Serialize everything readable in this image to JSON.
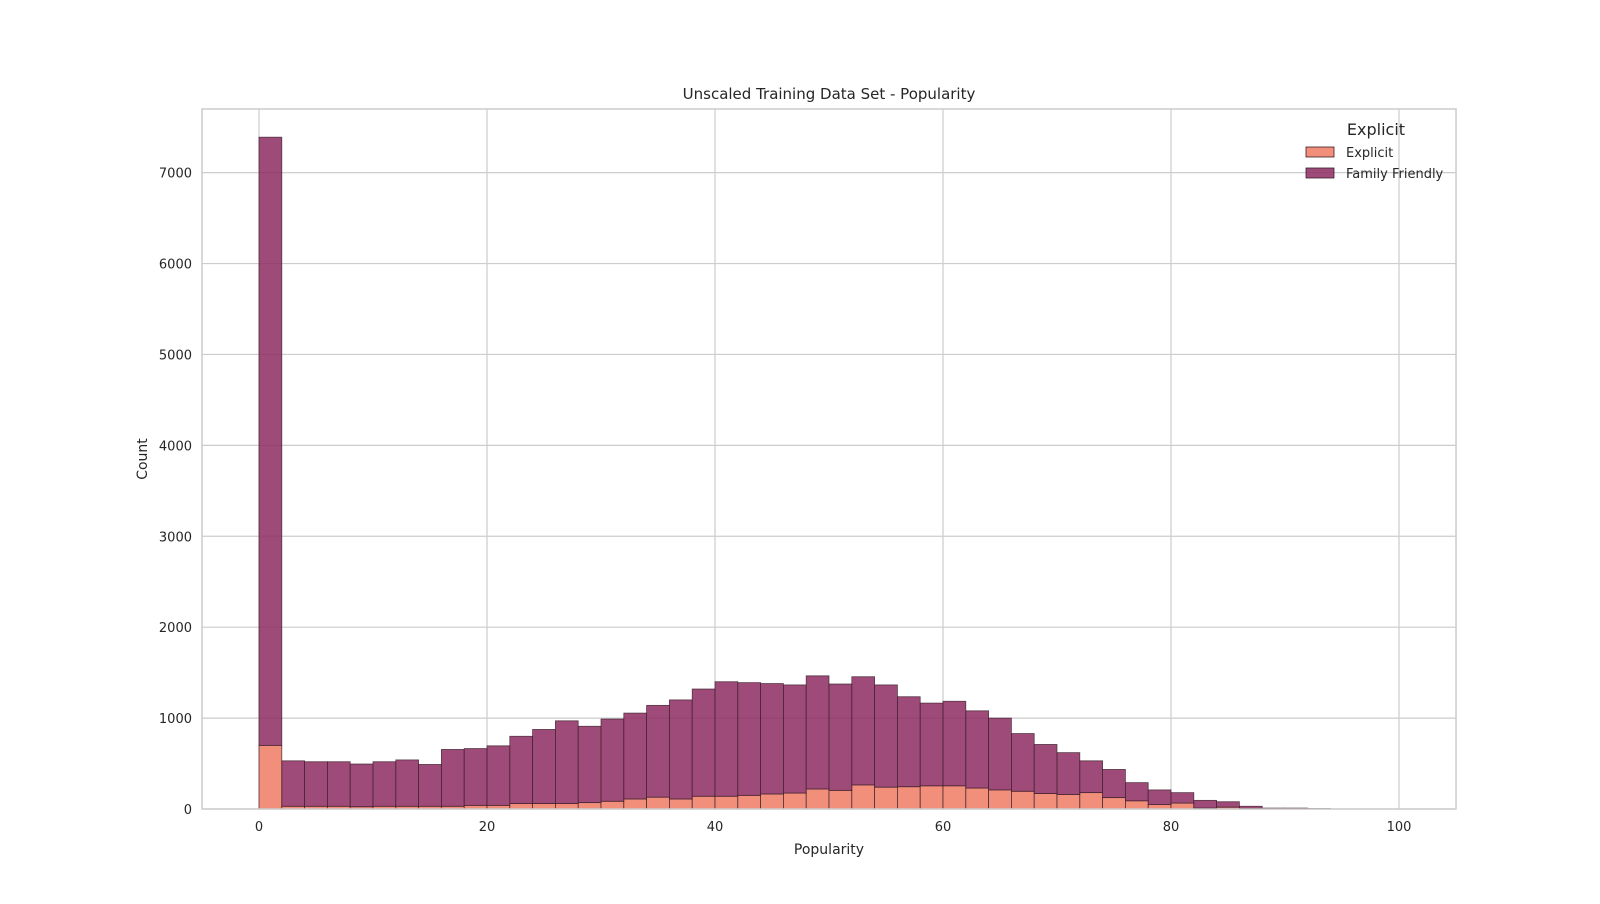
{
  "colors": {
    "background": "#ffffff",
    "grid": "#cccccc",
    "axes_edge": "#cccccc",
    "bar_edge": "#3b1f2b",
    "text": "#262626"
  },
  "chart_data": {
    "type": "bar",
    "subtype": "stacked-histogram",
    "title": "Unscaled Training Data Set - Popularity",
    "xlabel": "Popularity",
    "ylabel": "Count",
    "xlim": [
      -5,
      105
    ],
    "ylim": [
      0,
      7700
    ],
    "xticks": [
      0,
      20,
      40,
      60,
      80,
      100
    ],
    "yticks": [
      0,
      1000,
      2000,
      3000,
      4000,
      5000,
      6000,
      7000
    ],
    "grid": true,
    "legend": {
      "title": "Explicit",
      "position": "top-right"
    },
    "bins": {
      "start": 0,
      "width": 2,
      "count": 47
    },
    "series": [
      {
        "name": "Explicit",
        "color": "#ef7b64",
        "values": [
          700,
          30,
          30,
          30,
          25,
          30,
          30,
          30,
          30,
          40,
          40,
          60,
          60,
          60,
          70,
          85,
          110,
          130,
          110,
          140,
          140,
          150,
          165,
          175,
          220,
          205,
          265,
          240,
          245,
          255,
          255,
          230,
          210,
          195,
          170,
          160,
          180,
          125,
          90,
          50,
          65,
          10,
          20,
          5,
          0,
          0,
          0
        ]
      },
      {
        "name": "Family Friendly",
        "color": "#8e2c62",
        "values": [
          6690,
          500,
          490,
          490,
          470,
          490,
          510,
          460,
          625,
          625,
          655,
          740,
          815,
          910,
          840,
          905,
          945,
          1010,
          1090,
          1180,
          1260,
          1240,
          1215,
          1190,
          1245,
          1170,
          1190,
          1125,
          990,
          910,
          930,
          850,
          790,
          635,
          540,
          460,
          350,
          310,
          200,
          160,
          115,
          85,
          60,
          25,
          10,
          10,
          5
        ]
      }
    ]
  }
}
